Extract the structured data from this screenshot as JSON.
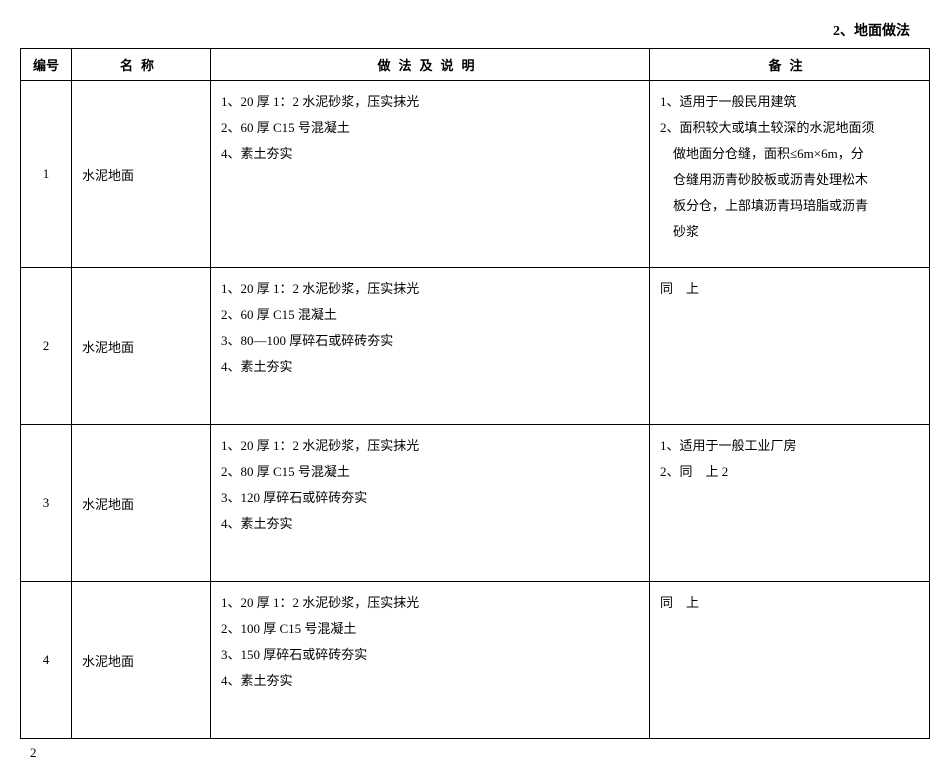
{
  "page_header": "2、地面做法",
  "page_footer": "2",
  "headers": {
    "num": "编号",
    "name": "名称",
    "method": "做法及说明",
    "note": "备注"
  },
  "rows": [
    {
      "num": "1",
      "name": "水泥地面",
      "methods": [
        "1、20 厚 1：2 水泥砂浆，压实抹光",
        "2、60 厚 C15 号混凝土",
        "4、素土夯实"
      ],
      "notes": [
        "1、适用于一般民用建筑",
        "2、面积较大或填土较深的水泥地面须",
        "　做地面分仓缝，面积≤6m×6m，分",
        "　仓缝用沥青砂胶板或沥青处理松木",
        "　板分仓，上部填沥青玛琣脂或沥青",
        "　砂浆"
      ]
    },
    {
      "num": "2",
      "name": "水泥地面",
      "methods": [
        "1、20 厚 1：2 水泥砂浆，压实抹光",
        "2、60 厚 C15 混凝土",
        "3、80—100 厚碎石或碎砖夯实",
        "4、素土夯实"
      ],
      "notes": [
        "同　上"
      ]
    },
    {
      "num": "3",
      "name": "水泥地面",
      "methods": [
        "1、20 厚 1：2 水泥砂浆，压实抹光",
        "2、80 厚 C15 号混凝土",
        "3、120 厚碎石或碎砖夯实",
        "4、素土夯实"
      ],
      "notes": [
        "1、适用于一般工业厂房",
        "2、同　上 2"
      ]
    },
    {
      "num": "4",
      "name": "水泥地面",
      "methods": [
        "1、20 厚 1：2 水泥砂浆，压实抹光",
        "2、100 厚 C15 号混凝土",
        "3、150 厚碎石或碎砖夯实",
        "4、素土夯实"
      ],
      "notes": [
        "同　上"
      ]
    }
  ]
}
